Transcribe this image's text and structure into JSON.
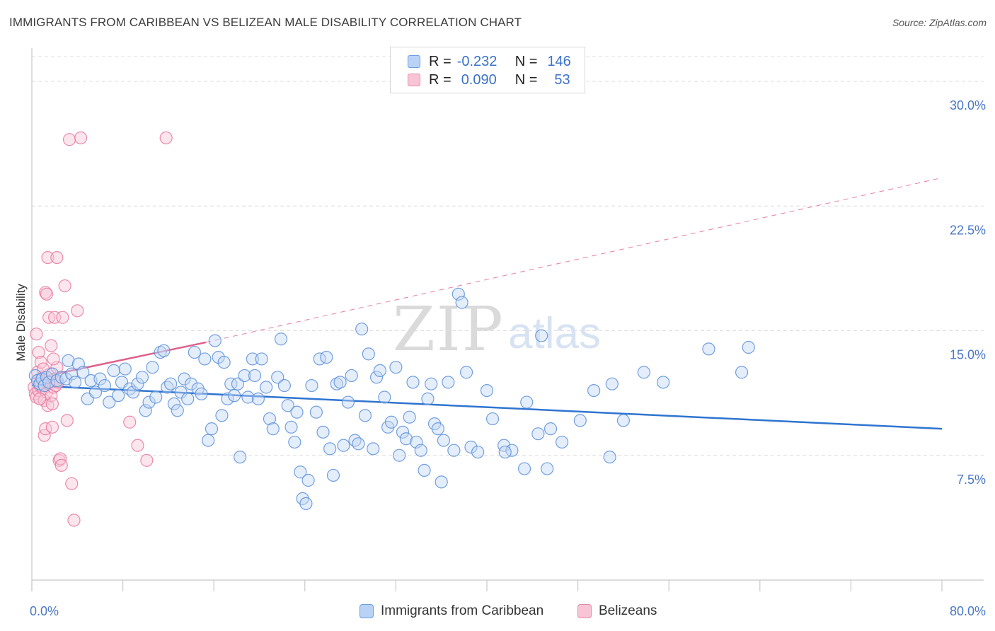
{
  "title": "IMMIGRANTS FROM CARIBBEAN VS BELIZEAN MALE DISABILITY CORRELATION CHART",
  "source": "Source: ZipAtlas.com",
  "watermark": {
    "part1": "ZIP",
    "part2": "atlas"
  },
  "legend": {
    "rows": [
      {
        "r_label": "R =",
        "r_value": "-0.232",
        "n_label": "N =",
        "n_value": "146"
      },
      {
        "r_label": "R =",
        "r_value": "0.090",
        "n_label": "N =",
        "n_value": "53"
      }
    ]
  },
  "bottom_legend": {
    "series1": "Immigrants from Caribbean",
    "series2": "Belizeans"
  },
  "colors": {
    "blue": "#5b8fd9",
    "blue_fill": "#c3d8f4",
    "blue_line": "#2f74d0",
    "pink": "#e8789f",
    "pink_fill": "#f8c8d8",
    "pink_line": "#e0608a",
    "tick_text": "#4a78c8"
  },
  "chart_data": {
    "type": "scatter",
    "title": "IMMIGRANTS FROM CARIBBEAN VS BELIZEAN MALE DISABILITY CORRELATION CHART",
    "xlabel": "",
    "ylabel": "Male Disability",
    "xlim": [
      0,
      80
    ],
    "ylim": [
      0,
      32
    ],
    "x_tick_labels": [
      "0.0%",
      "80.0%"
    ],
    "y_ticks": [
      7.5,
      15.0,
      22.5,
      30.0
    ],
    "y_tick_labels": [
      "7.5%",
      "15.0%",
      "22.5%",
      "30.0%"
    ],
    "grid": true,
    "legend_position": "top-center",
    "series": [
      {
        "name": "Immigrants from Caribbean",
        "r": -0.232,
        "n": 146,
        "trend": {
          "x": [
            0,
            80
          ],
          "y": [
            11.7,
            9.1
          ],
          "style": "solid"
        },
        "points": [
          [
            0.3,
            12.3
          ],
          [
            0.5,
            12.0
          ],
          [
            0.7,
            11.8
          ],
          [
            0.9,
            12.1
          ],
          [
            1.1,
            11.7
          ],
          [
            1.3,
            12.2
          ],
          [
            1.5,
            11.9
          ],
          [
            1.8,
            12.4
          ],
          [
            2.2,
            12.0
          ],
          [
            2.6,
            12.2
          ],
          [
            3.0,
            12.1
          ],
          [
            3.2,
            13.2
          ],
          [
            3.5,
            12.4
          ],
          [
            3.8,
            11.9
          ],
          [
            4.1,
            13.0
          ],
          [
            4.5,
            12.5
          ],
          [
            4.9,
            10.9
          ],
          [
            5.2,
            12.0
          ],
          [
            5.6,
            11.3
          ],
          [
            6.0,
            12.1
          ],
          [
            6.4,
            11.7
          ],
          [
            6.8,
            10.7
          ],
          [
            7.2,
            12.6
          ],
          [
            7.6,
            11.1
          ],
          [
            7.9,
            11.9
          ],
          [
            8.2,
            12.7
          ],
          [
            8.6,
            11.5
          ],
          [
            8.9,
            11.3
          ],
          [
            9.3,
            11.8
          ],
          [
            9.7,
            12.2
          ],
          [
            10.0,
            10.2
          ],
          [
            10.3,
            10.7
          ],
          [
            10.6,
            12.8
          ],
          [
            10.9,
            11.0
          ],
          [
            11.3,
            13.7
          ],
          [
            11.6,
            13.8
          ],
          [
            11.9,
            11.6
          ],
          [
            12.2,
            11.8
          ],
          [
            12.5,
            10.6
          ],
          [
            12.8,
            10.2
          ],
          [
            13.1,
            11.3
          ],
          [
            13.4,
            12.1
          ],
          [
            13.7,
            10.9
          ],
          [
            14.0,
            11.8
          ],
          [
            14.3,
            13.7
          ],
          [
            14.6,
            11.5
          ],
          [
            14.9,
            11.2
          ],
          [
            15.2,
            13.3
          ],
          [
            15.5,
            8.4
          ],
          [
            15.8,
            9.1
          ],
          [
            16.1,
            14.4
          ],
          [
            16.4,
            13.4
          ],
          [
            16.7,
            9.9
          ],
          [
            16.9,
            13.1
          ],
          [
            17.2,
            10.9
          ],
          [
            17.5,
            11.8
          ],
          [
            17.8,
            11.1
          ],
          [
            18.1,
            11.8
          ],
          [
            18.3,
            7.4
          ],
          [
            18.7,
            12.3
          ],
          [
            19.0,
            11.0
          ],
          [
            19.4,
            13.3
          ],
          [
            19.6,
            12.3
          ],
          [
            19.9,
            10.9
          ],
          [
            20.2,
            13.3
          ],
          [
            20.6,
            11.6
          ],
          [
            20.9,
            9.7
          ],
          [
            21.2,
            9.1
          ],
          [
            21.6,
            12.2
          ],
          [
            21.9,
            14.5
          ],
          [
            22.2,
            11.7
          ],
          [
            22.5,
            10.5
          ],
          [
            22.8,
            9.2
          ],
          [
            23.1,
            8.3
          ],
          [
            23.3,
            10.1
          ],
          [
            23.6,
            6.5
          ],
          [
            23.8,
            4.9
          ],
          [
            24.1,
            4.6
          ],
          [
            24.3,
            6.0
          ],
          [
            24.6,
            11.7
          ],
          [
            25.0,
            10.1
          ],
          [
            25.3,
            13.3
          ],
          [
            25.6,
            8.9
          ],
          [
            25.9,
            13.4
          ],
          [
            26.2,
            7.9
          ],
          [
            26.5,
            6.3
          ],
          [
            26.8,
            11.8
          ],
          [
            27.1,
            11.9
          ],
          [
            27.4,
            8.1
          ],
          [
            27.8,
            10.7
          ],
          [
            28.1,
            12.3
          ],
          [
            28.4,
            8.4
          ],
          [
            28.7,
            8.2
          ],
          [
            29.0,
            15.1
          ],
          [
            29.3,
            9.9
          ],
          [
            29.6,
            13.6
          ],
          [
            30.0,
            7.9
          ],
          [
            30.3,
            12.2
          ],
          [
            30.6,
            12.6
          ],
          [
            31.0,
            11.0
          ],
          [
            31.3,
            9.2
          ],
          [
            31.6,
            9.5
          ],
          [
            32.0,
            12.8
          ],
          [
            32.3,
            7.5
          ],
          [
            32.6,
            8.9
          ],
          [
            32.9,
            8.5
          ],
          [
            33.2,
            9.8
          ],
          [
            33.5,
            11.9
          ],
          [
            33.8,
            8.3
          ],
          [
            34.2,
            7.8
          ],
          [
            34.5,
            6.6
          ],
          [
            34.8,
            10.9
          ],
          [
            35.1,
            11.8
          ],
          [
            35.4,
            9.4
          ],
          [
            35.7,
            9.1
          ],
          [
            36.2,
            8.4
          ],
          [
            36.6,
            11.9
          ],
          [
            37.1,
            7.8
          ],
          [
            37.5,
            17.2
          ],
          [
            37.8,
            16.7
          ],
          [
            38.2,
            12.5
          ],
          [
            38.6,
            8.0
          ],
          [
            39.2,
            7.7
          ],
          [
            40.0,
            11.4
          ],
          [
            40.5,
            9.7
          ],
          [
            41.5,
            8.1
          ],
          [
            42.2,
            7.8
          ],
          [
            43.3,
            6.7
          ],
          [
            43.5,
            10.7
          ],
          [
            44.5,
            8.8
          ],
          [
            44.8,
            14.7
          ],
          [
            45.3,
            6.7
          ],
          [
            45.6,
            9.1
          ],
          [
            46.6,
            8.3
          ],
          [
            48.2,
            9.6
          ],
          [
            49.4,
            11.4
          ],
          [
            50.8,
            7.4
          ],
          [
            51.0,
            11.8
          ],
          [
            52.0,
            9.6
          ],
          [
            53.8,
            12.5
          ],
          [
            55.5,
            11.9
          ],
          [
            59.5,
            13.9
          ],
          [
            62.4,
            12.5
          ],
          [
            63.0,
            14.0
          ],
          [
            41.6,
            7.7
          ],
          [
            36.0,
            5.9
          ]
        ]
      },
      {
        "name": "Belizeans",
        "r": 0.09,
        "n": 53,
        "trend": {
          "x": [
            0,
            15.3
          ],
          "y": [
            12.1,
            14.3
          ],
          "style": "solid",
          "extended": {
            "x": [
              15.3,
              80
            ],
            "y": [
              14.3,
              24.2
            ],
            "style": "dashed"
          }
        },
        "points": [
          [
            0.2,
            11.6
          ],
          [
            0.3,
            11.2
          ],
          [
            0.4,
            11.0
          ],
          [
            0.5,
            12.5
          ],
          [
            0.6,
            11.4
          ],
          [
            0.7,
            11.7
          ],
          [
            0.8,
            11.9
          ],
          [
            0.9,
            12.2
          ],
          [
            1.0,
            11.5
          ],
          [
            1.1,
            10.8
          ],
          [
            1.2,
            12.0
          ],
          [
            1.3,
            11.3
          ],
          [
            1.4,
            10.5
          ],
          [
            1.5,
            11.8
          ],
          [
            1.6,
            12.4
          ],
          [
            1.7,
            11.1
          ],
          [
            1.8,
            10.6
          ],
          [
            1.9,
            11.6
          ],
          [
            2.0,
            12.1
          ],
          [
            2.1,
            11.7
          ],
          [
            2.2,
            12.8
          ],
          [
            2.3,
            11.9
          ],
          [
            0.4,
            14.8
          ],
          [
            0.6,
            13.7
          ],
          [
            0.8,
            13.1
          ],
          [
            1.0,
            12.7
          ],
          [
            1.2,
            17.3
          ],
          [
            1.3,
            17.2
          ],
          [
            1.4,
            19.4
          ],
          [
            1.5,
            15.8
          ],
          [
            1.7,
            14.1
          ],
          [
            1.9,
            13.3
          ],
          [
            2.0,
            15.8
          ],
          [
            2.2,
            19.4
          ],
          [
            2.4,
            7.2
          ],
          [
            2.5,
            7.3
          ],
          [
            2.6,
            6.9
          ],
          [
            2.7,
            15.8
          ],
          [
            2.9,
            17.7
          ],
          [
            3.1,
            9.6
          ],
          [
            3.3,
            26.5
          ],
          [
            3.5,
            5.8
          ],
          [
            3.7,
            3.6
          ],
          [
            4.0,
            16.2
          ],
          [
            4.3,
            26.6
          ],
          [
            8.6,
            9.5
          ],
          [
            9.3,
            8.1
          ],
          [
            10.1,
            7.2
          ],
          [
            1.1,
            8.7
          ],
          [
            1.2,
            9.1
          ],
          [
            1.8,
            9.2
          ],
          [
            0.7,
            10.9
          ],
          [
            11.8,
            26.6
          ]
        ]
      }
    ]
  }
}
